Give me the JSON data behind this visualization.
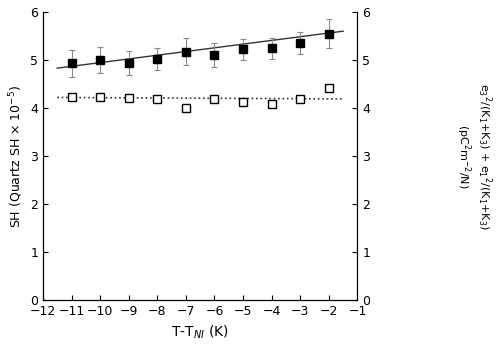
{
  "title": "",
  "xlabel": "T-T$_{NI}$ (K)",
  "ylabel_left": "SH (Quartz SH × 10$^{-5}$)",
  "ylabel_right": "e$_3$$^2$/(K$_1$+K$_3$) + e$_1$$^2$/(K$_1$+K$_3$)\n(pC$^2$m$^{-2}$/N)",
  "xlim": [
    -12,
    -1
  ],
  "ylim_left": [
    0,
    6
  ],
  "ylim_right": [
    0,
    6
  ],
  "xticks": [
    -12,
    -11,
    -10,
    -9,
    -8,
    -7,
    -6,
    -5,
    -4,
    -3,
    -2,
    -1
  ],
  "yticks_left": [
    0,
    1,
    2,
    3,
    4,
    5,
    6
  ],
  "yticks_right": [
    0,
    1,
    2,
    3,
    4,
    5,
    6
  ],
  "sh_x": [
    -11,
    -10,
    -9,
    -8,
    -7,
    -6,
    -5,
    -4,
    -3,
    -2
  ],
  "sh_y": [
    4.93,
    5.0,
    4.94,
    5.03,
    5.17,
    5.1,
    5.22,
    5.24,
    5.35,
    5.55
  ],
  "sh_yerr": [
    0.28,
    0.28,
    0.25,
    0.23,
    0.28,
    0.25,
    0.22,
    0.22,
    0.23,
    0.3
  ],
  "sh_fit_x": [
    -11.5,
    -1.5
  ],
  "sh_fit_y": [
    4.83,
    5.6
  ],
  "elastic_x": [
    -11,
    -10,
    -9,
    -8,
    -7,
    -6,
    -5,
    -4,
    -3,
    -2
  ],
  "elastic_y": [
    4.22,
    4.22,
    4.2,
    4.19,
    4.0,
    4.18,
    4.12,
    4.09,
    4.18,
    4.42
  ],
  "elastic_fit_x": [
    -11.5,
    -1.5
  ],
  "elastic_fit_y": [
    4.22,
    4.19
  ],
  "marker_size": 6,
  "line_color": "#333333",
  "marker_color": "black",
  "ecolor": "#888888",
  "background_color": "white",
  "figsize": [
    5.0,
    3.48
  ],
  "dpi": 100
}
